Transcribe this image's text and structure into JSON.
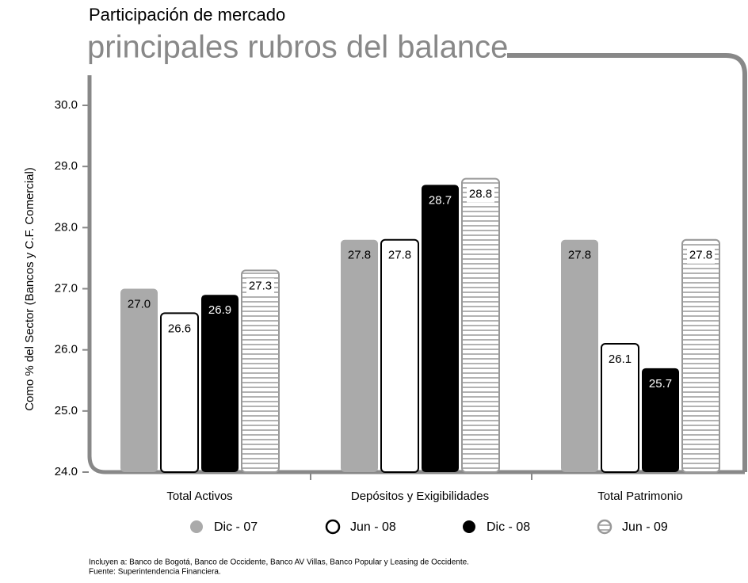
{
  "title": "Participación de mercado",
  "subtitle": "principales rubros del balance",
  "notes": [
    "Incluyen a: Banco de Bogotá, Banco de Occidente, Banco AV Villas, Banco Popular y Leasing de Occidente.",
    "Fuente: Superintendencia Financiera."
  ],
  "chart_data": {
    "type": "bar",
    "ylabel": "Como % del Sector (Bancos y C.F. Comercial)",
    "categories": [
      "Total Activos",
      "Depósitos y Exigibilidades",
      "Total Patrimonio"
    ],
    "series": [
      {
        "name": "Dic - 07",
        "color": "#aaaaaa",
        "values": [
          27.0,
          27.8,
          27.8
        ],
        "value_labels": [
          "27.0",
          "27.8",
          "27.8"
        ]
      },
      {
        "name": "Jun - 08",
        "color": "#ffffff",
        "values": [
          26.6,
          27.8,
          26.1
        ],
        "value_labels": [
          "26.6",
          "27.8",
          "26.1"
        ]
      },
      {
        "name": "Dic - 08",
        "color": "#000000",
        "values": [
          26.9,
          28.7,
          25.7
        ],
        "value_labels": [
          "26.9",
          "28.7",
          "25.7"
        ]
      },
      {
        "name": "Jun - 09",
        "color": "#999999",
        "hatch": "horizontal",
        "values": [
          27.3,
          28.8,
          27.8
        ],
        "value_labels": [
          "27.3",
          "28.8",
          "27.8"
        ]
      }
    ],
    "ylim": [
      24,
      30
    ],
    "yticks": [
      {
        "value": 24,
        "label": "24.0"
      },
      {
        "value": 25,
        "label": "25.0"
      },
      {
        "value": 26,
        "label": "26.0"
      },
      {
        "value": 27,
        "label": "27.0"
      },
      {
        "value": 28,
        "label": "28.0"
      },
      {
        "value": 29,
        "label": "29.0"
      },
      {
        "value": 30,
        "label": "30.0"
      }
    ],
    "legend": "bottom"
  }
}
